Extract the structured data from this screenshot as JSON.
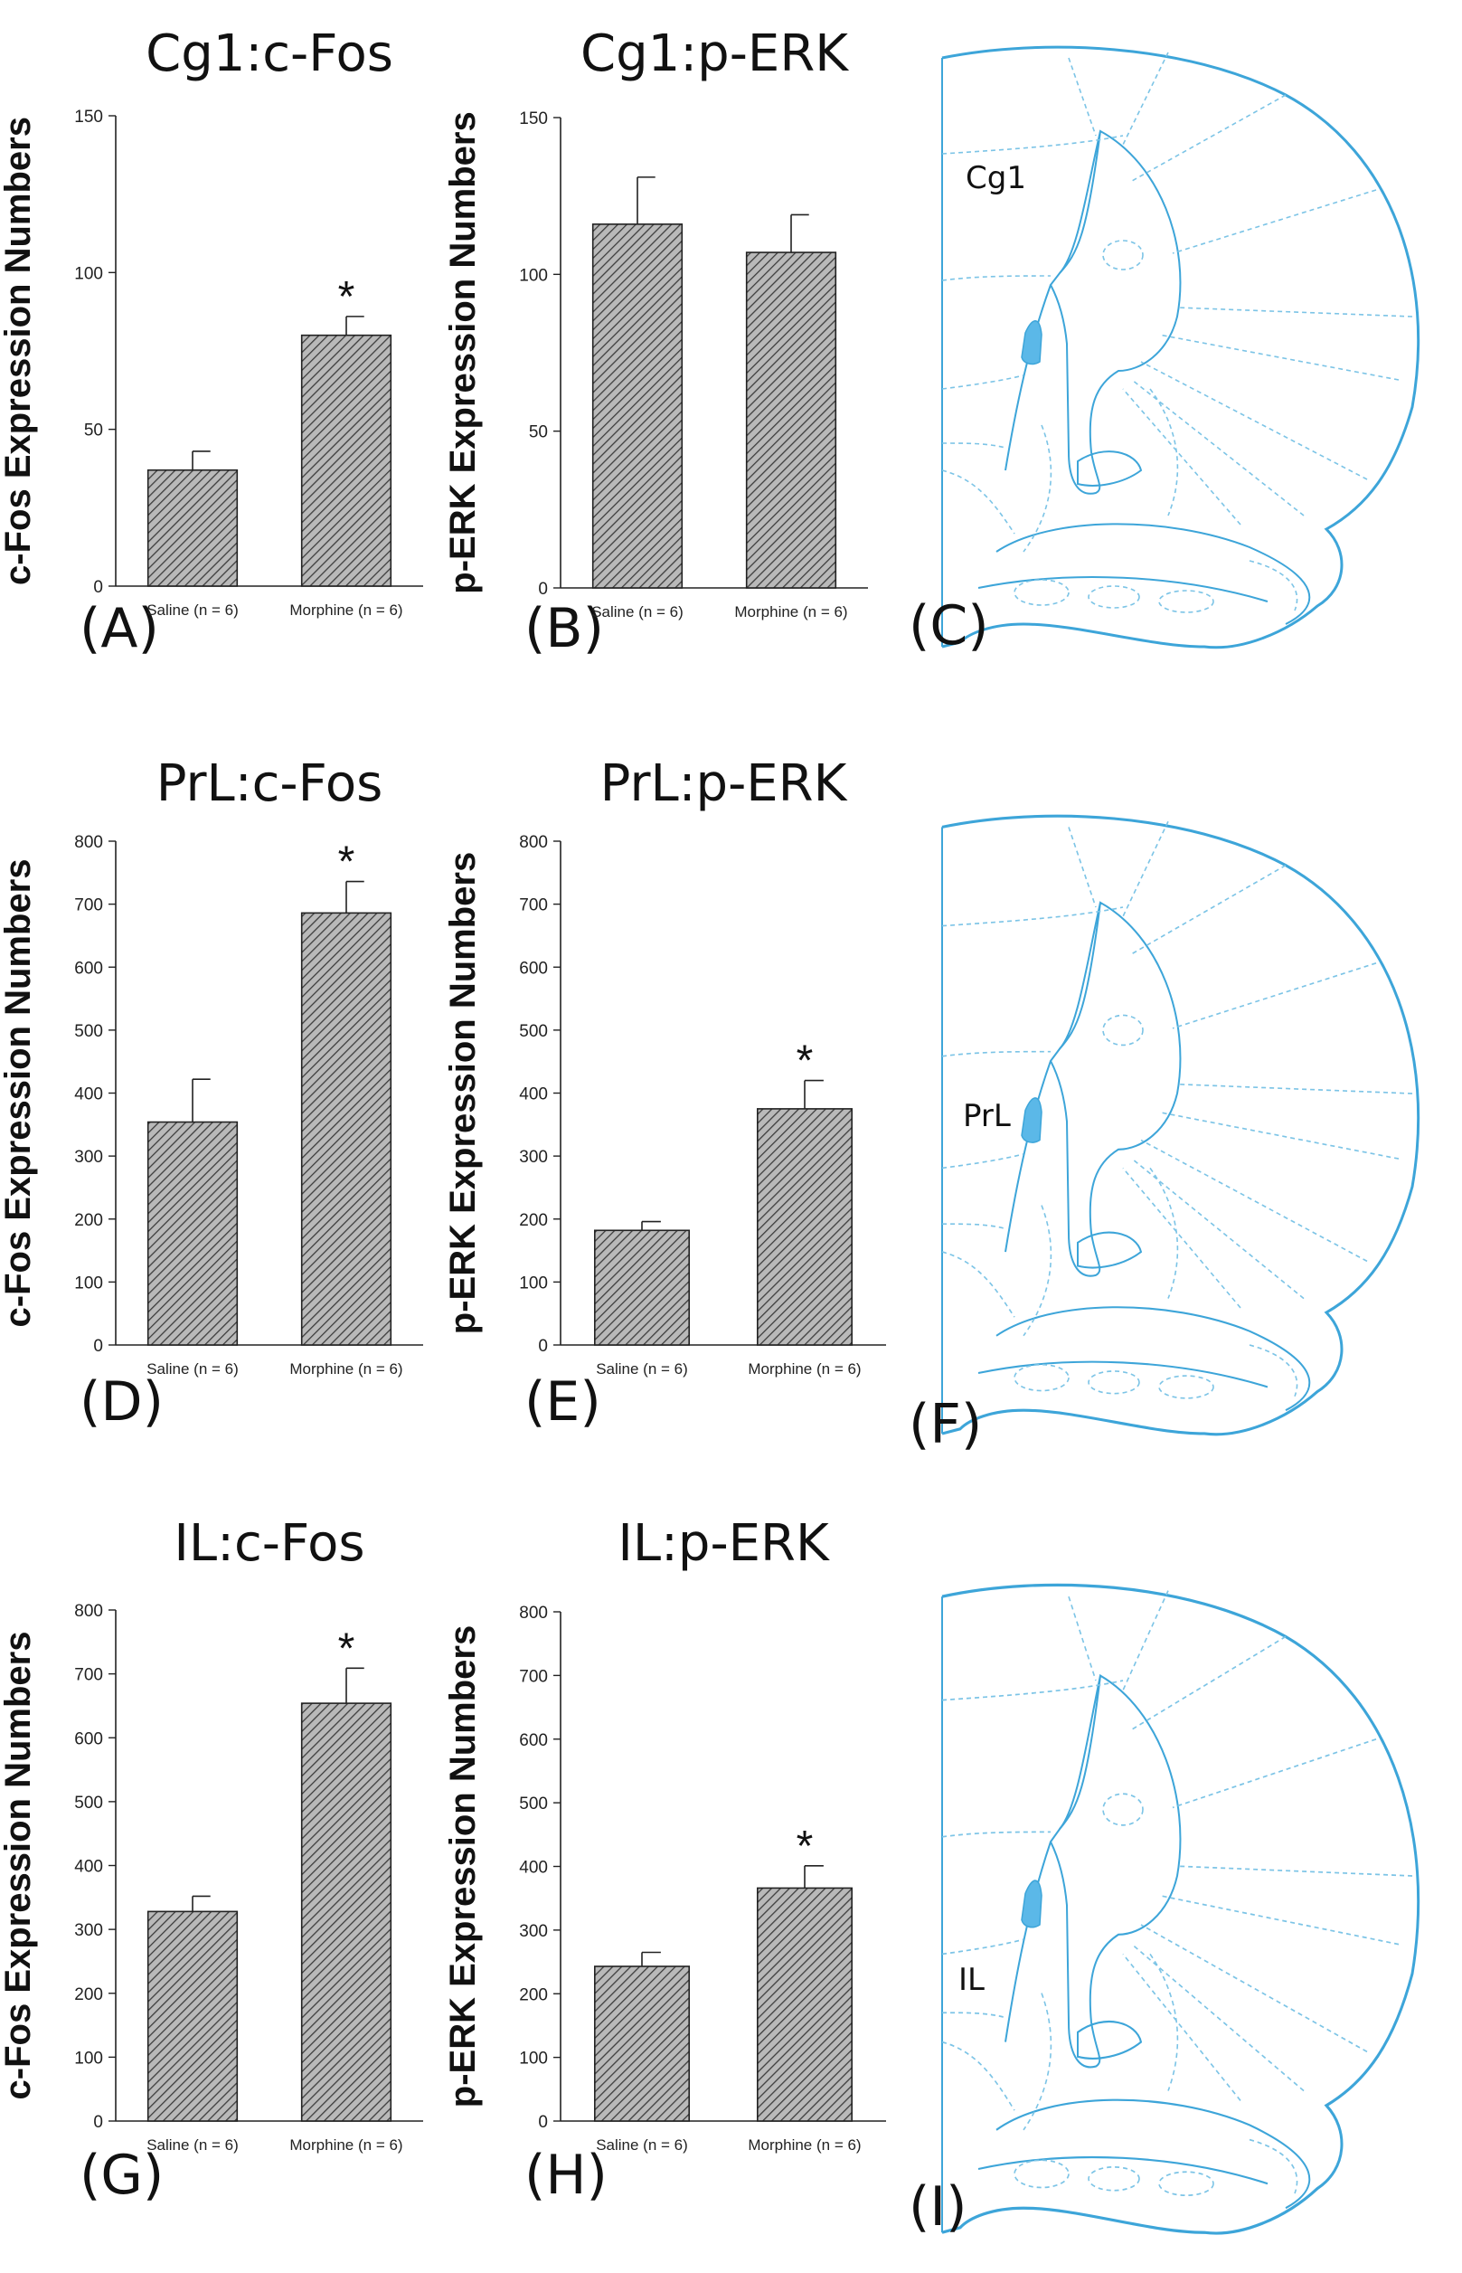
{
  "colors": {
    "bar_fill": "#9a9a9a",
    "brain_line": "#3da5d9"
  },
  "chart_data": [
    {
      "type": "bar",
      "panel": "(A)",
      "title": "Cg1:c-Fos",
      "ylabel": "c-Fos Expression Numbers",
      "categories": [
        "Saline (n = 6)",
        "Morphine (n = 6)"
      ],
      "values": [
        37,
        80
      ],
      "errors": [
        6,
        6
      ],
      "significance": [
        "",
        "*"
      ],
      "ylim": [
        0,
        150
      ],
      "yticks": [
        0,
        50,
        100,
        150
      ]
    },
    {
      "type": "bar",
      "panel": "(B)",
      "title": "Cg1:p-ERK",
      "ylabel": "p-ERK Expression Numbers",
      "categories": [
        "Saline (n = 6)",
        "Morphine (n = 6)"
      ],
      "values": [
        116,
        107
      ],
      "errors": [
        15,
        12
      ],
      "significance": [
        "",
        ""
      ],
      "ylim": [
        0,
        150
      ],
      "yticks": [
        0,
        50,
        100,
        150
      ]
    },
    {
      "type": "bar",
      "panel": "(D)",
      "title": "PrL:c-Fos",
      "ylabel": "c-Fos Expression Numbers",
      "categories": [
        "Saline (n = 6)",
        "Morphine (n = 6)"
      ],
      "values": [
        354,
        686
      ],
      "errors": [
        68,
        50
      ],
      "significance": [
        "",
        "*"
      ],
      "ylim": [
        0,
        800
      ],
      "yticks": [
        0,
        100,
        200,
        300,
        400,
        500,
        600,
        700,
        800
      ]
    },
    {
      "type": "bar",
      "panel": "(E)",
      "title": "PrL:p-ERK",
      "ylabel": "p-ERK Expression Numbers",
      "categories": [
        "Saline (n = 6)",
        "Morphine (n = 6)"
      ],
      "values": [
        182,
        375
      ],
      "errors": [
        14,
        45
      ],
      "significance": [
        "",
        "*"
      ],
      "ylim": [
        0,
        800
      ],
      "yticks": [
        0,
        100,
        200,
        300,
        400,
        500,
        600,
        700,
        800
      ]
    },
    {
      "type": "bar",
      "panel": "(G)",
      "title": "IL:c-Fos",
      "ylabel": "c-Fos Expression Numbers",
      "categories": [
        "Saline (n = 6)",
        "Morphine (n = 6)"
      ],
      "values": [
        328,
        654
      ],
      "errors": [
        24,
        55
      ],
      "significance": [
        "",
        "*"
      ],
      "ylim": [
        0,
        800
      ],
      "yticks": [
        0,
        100,
        200,
        300,
        400,
        500,
        600,
        700,
        800
      ]
    },
    {
      "type": "bar",
      "panel": "(H)",
      "title": "IL:p-ERK",
      "ylabel": "p-ERK Expression Numbers",
      "categories": [
        "Saline (n = 6)",
        "Morphine (n = 6)"
      ],
      "values": [
        243,
        366
      ],
      "errors": [
        22,
        35
      ],
      "significance": [
        "",
        "*"
      ],
      "ylim": [
        0,
        800
      ],
      "yticks": [
        0,
        100,
        200,
        300,
        400,
        500,
        600,
        700,
        800
      ]
    }
  ],
  "brain_panels": [
    {
      "panel": "(C)",
      "region": "Cg1"
    },
    {
      "panel": "(F)",
      "region": "PrL"
    },
    {
      "panel": "(I)",
      "region": "IL"
    }
  ]
}
